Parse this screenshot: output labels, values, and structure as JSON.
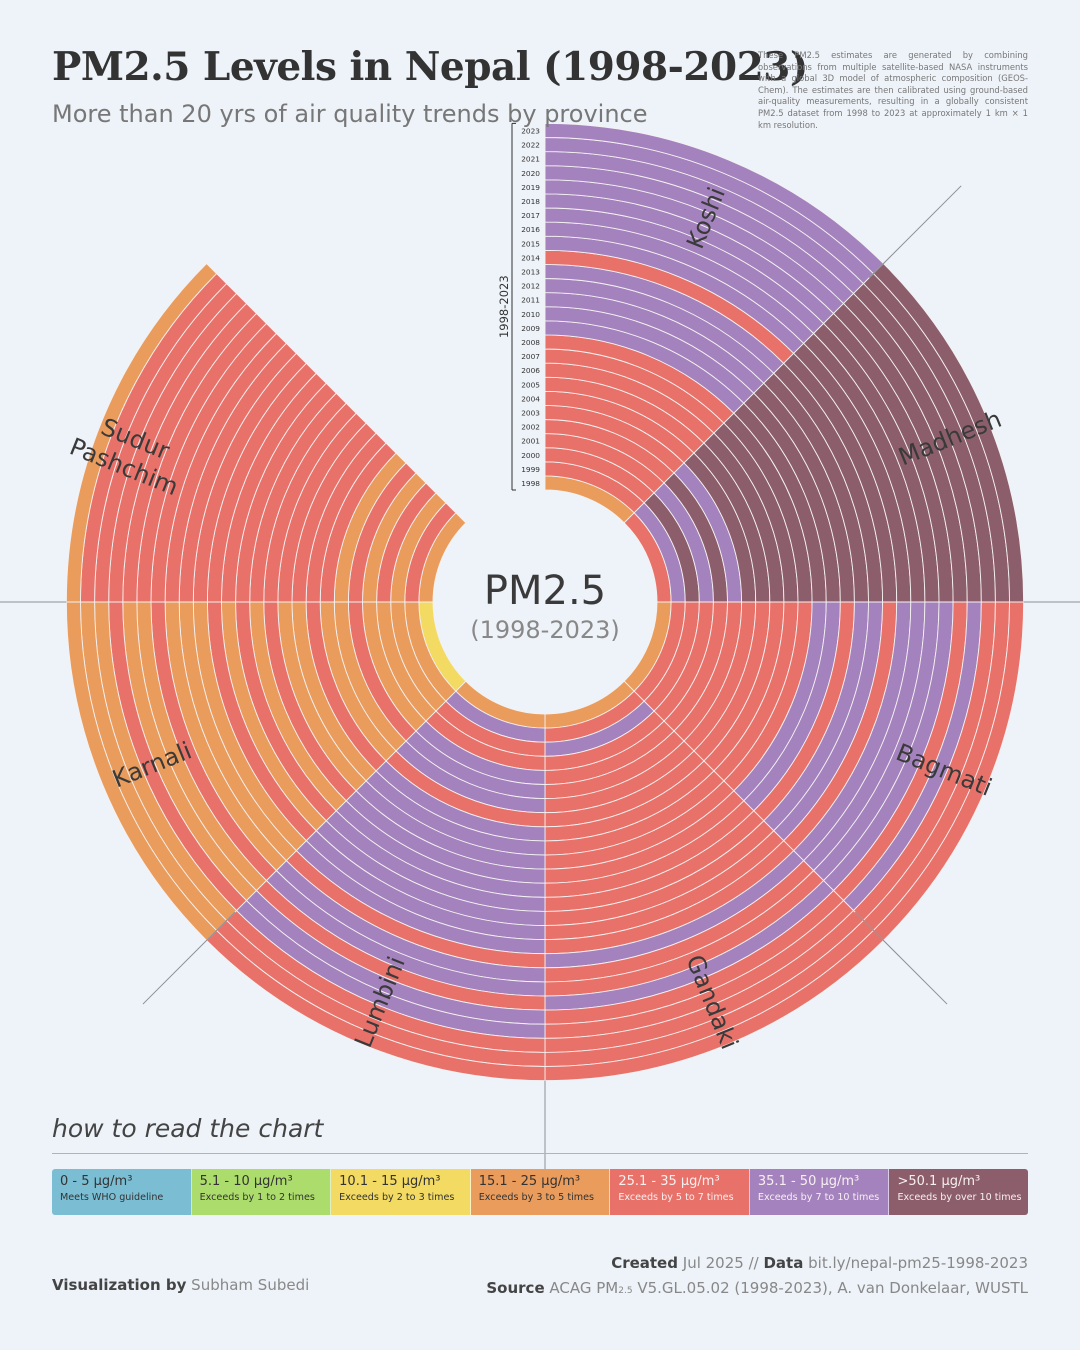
{
  "header": {
    "title": "PM2.5 Levels in Nepal (1998-2023)",
    "subtitle": "More than 20 yrs of air quality trends by province",
    "note": "These PM2.5 estimates are generated by combining observations from multiple satellite-based NASA instruments with a global 3D model of atmospheric composition (GEOS-Chem). The estimates are then calibrated using ground-based air-quality measurements, resulting in a globally consistent PM2.5 dataset from 1998 to 2023 at approximately 1 km × 1 km resolution."
  },
  "center": {
    "label": "PM2.5",
    "sublabel": "(1998-2023)"
  },
  "year_axis_label": "1998-2023",
  "how_to_read": "how to read the chart",
  "legend": [
    {
      "range": "0 - 5 µg/m³",
      "desc": "Meets WHO guideline",
      "color": "#7bbdd3"
    },
    {
      "range": "5.1 - 10 µg/m³",
      "desc": "Exceeds by 1 to 2 times",
      "color": "#acdc6c"
    },
    {
      "range": "10.1 - 15 µg/m³",
      "desc": "Exceeds by 2 to 3 times",
      "color": "#f2da63"
    },
    {
      "range": "15.1 - 25 µg/m³",
      "desc": "Exceeds by 3 to 5 times",
      "color": "#ea9c5c"
    },
    {
      "range": "25.1 - 35 µg/m³",
      "desc": "Exceeds by 5 to 7 times",
      "color": "#e8726a"
    },
    {
      "range": "35.1 - 50 µg/m³",
      "desc": "Exceeds by 7 to 10 times",
      "color": "#a482be"
    },
    {
      "range": ">50.1 µg/m³",
      "desc": "Exceeds by over 10 times",
      "color": "#8c5e6b"
    }
  ],
  "credits": {
    "created_label": "Created",
    "created_value": "Jul 2025",
    "sep": "//",
    "data_label": "Data",
    "data_value": "bit.ly/nepal-pm25-1998-2023",
    "source_label": "Source",
    "source_value_a": "ACAG PM",
    "source_value_sub": "2.5",
    "source_value_b": " V5.GL.05.02 (1998-2023), A. van Donkelaar, WUSTL",
    "viz_label": "Visualization by",
    "viz_value": "Subham Subedi"
  },
  "chart_data": {
    "type": "radial-heatmap",
    "unit": "µg/m³",
    "years": [
      1998,
      1999,
      2000,
      2001,
      2002,
      2003,
      2004,
      2005,
      2006,
      2007,
      2008,
      2009,
      2010,
      2011,
      2012,
      2013,
      2014,
      2015,
      2016,
      2017,
      2018,
      2019,
      2020,
      2021,
      2022,
      2023
    ],
    "categories": [
      "0 - 5",
      "5.1 - 10",
      "10.1 - 15",
      "15.1 - 25",
      "25.1 - 35",
      "35.1 - 50",
      ">50.1"
    ],
    "provinces": [
      {
        "name": "Koshi",
        "values": [
          20,
          28,
          29,
          28,
          29,
          28,
          29,
          30,
          29,
          28,
          29,
          36,
          37,
          38,
          37,
          36,
          30,
          37,
          38,
          37,
          37,
          38,
          37,
          38,
          37,
          38
        ]
      },
      {
        "name": "Madhesh",
        "values": [
          30,
          38,
          52,
          38,
          52,
          38,
          52,
          55,
          56,
          55,
          56,
          58,
          57,
          56,
          57,
          58,
          56,
          57,
          58,
          56,
          57,
          58,
          56,
          57,
          58,
          56
        ]
      },
      {
        "name": "Bagmati",
        "values": [
          20,
          28,
          29,
          28,
          29,
          28,
          29,
          30,
          28,
          29,
          30,
          37,
          38,
          30,
          37,
          38,
          30,
          37,
          38,
          37,
          38,
          30,
          38,
          30,
          29,
          30
        ]
      },
      {
        "name": "Gandaki",
        "values": [
          20,
          28,
          37,
          28,
          28,
          29,
          28,
          29,
          30,
          29,
          28,
          29,
          28,
          29,
          30,
          29,
          28,
          36,
          29,
          28,
          37,
          28,
          29,
          30,
          29,
          28
        ]
      },
      {
        "name": "Lumbini",
        "values": [
          20,
          37,
          28,
          29,
          37,
          38,
          37,
          28,
          37,
          38,
          37,
          38,
          37,
          38,
          37,
          38,
          37,
          28,
          37,
          38,
          28,
          37,
          38,
          28,
          29,
          28
        ]
      },
      {
        "name": "Karnali",
        "values": [
          12,
          18,
          20,
          22,
          20,
          28,
          22,
          24,
          28,
          22,
          20,
          28,
          22,
          28,
          24,
          28,
          22,
          20,
          22,
          28,
          22,
          20,
          28,
          22,
          20,
          22
        ]
      },
      {
        "name": "Sudur Pashchim",
        "values": [
          22,
          28,
          22,
          28,
          22,
          28,
          22,
          28,
          29,
          28,
          29,
          28,
          29,
          28,
          29,
          28,
          29,
          28,
          29,
          28,
          29,
          28,
          29,
          28,
          29,
          20
        ]
      }
    ]
  }
}
